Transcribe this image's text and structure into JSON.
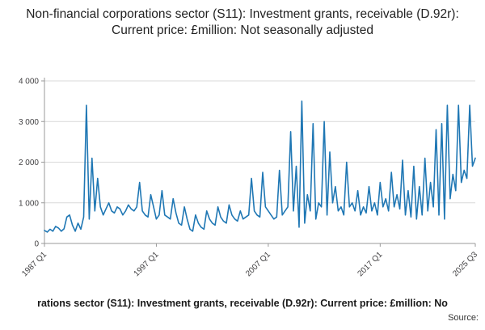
{
  "title": "Non-financial corporations sector (S11): Investment grants, receivable (D.92r): Current price: £million: Not seasonally adjusted",
  "footer": {
    "caption": "rations sector (S11): Investment grants, receivable (D.92r): Current price: £million: No",
    "source_label": "Source:"
  },
  "chart_data": {
    "type": "line",
    "title": "Non-financial corporations sector (S11): Investment grants, receivable (D.92r): Current price: £million: Not seasonally adjusted",
    "xlabel": "",
    "ylabel": "",
    "frequency": "quarterly",
    "x_start": "1987 Q1",
    "x_end": "2025 Q3",
    "ylim": [
      0,
      4000
    ],
    "grid": "horizontal",
    "line_color": "#1f77b4",
    "axis_color": "#999999",
    "grid_color": "#d9d9d9",
    "tick_label_color": "#414042",
    "y_ticks": [
      {
        "value": 0,
        "label": "0"
      },
      {
        "value": 1000,
        "label": "1 000"
      },
      {
        "value": 2000,
        "label": "2 000"
      },
      {
        "value": 3000,
        "label": "3 000"
      },
      {
        "value": 4000,
        "label": "4 000"
      }
    ],
    "x_ticks": [
      {
        "index": 0,
        "label": "1987 Q1"
      },
      {
        "index": 40,
        "label": "1997 Q1"
      },
      {
        "index": 80,
        "label": "2007 Q1"
      },
      {
        "index": 120,
        "label": "2017 Q1"
      },
      {
        "index": 154,
        "label": "2025 Q3"
      }
    ],
    "values": [
      320,
      280,
      350,
      300,
      420,
      380,
      300,
      360,
      650,
      700,
      450,
      300,
      500,
      350,
      650,
      3400,
      600,
      2100,
      800,
      1600,
      900,
      700,
      850,
      1000,
      800,
      750,
      900,
      850,
      700,
      800,
      950,
      850,
      800,
      900,
      1500,
      800,
      700,
      650,
      1200,
      900,
      600,
      700,
      1300,
      700,
      650,
      600,
      1100,
      750,
      500,
      450,
      900,
      600,
      350,
      300,
      700,
      500,
      400,
      350,
      800,
      600,
      500,
      450,
      900,
      650,
      550,
      500,
      950,
      700,
      600,
      550,
      800,
      600,
      650,
      700,
      1600,
      800,
      700,
      650,
      1750,
      900,
      800,
      700,
      600,
      650,
      1800,
      700,
      800,
      900,
      2750,
      800,
      1900,
      400,
      3500,
      500,
      1200,
      800,
      2950,
      600,
      1000,
      900,
      3000,
      700,
      2250,
      1000,
      1400,
      800,
      900,
      700,
      2000,
      900,
      1000,
      800,
      1300,
      700,
      900,
      750,
      1400,
      800,
      1000,
      700,
      1500,
      900,
      1100,
      800,
      1750,
      900,
      1200,
      850,
      2050,
      700,
      1300,
      650,
      1900,
      600,
      1400,
      700,
      2100,
      800,
      1500,
      900,
      2800,
      700,
      2950,
      600,
      3400,
      1100,
      1700,
      1300,
      3400,
      1500,
      1800,
      1600,
      3400,
      1900,
      2100
    ]
  }
}
